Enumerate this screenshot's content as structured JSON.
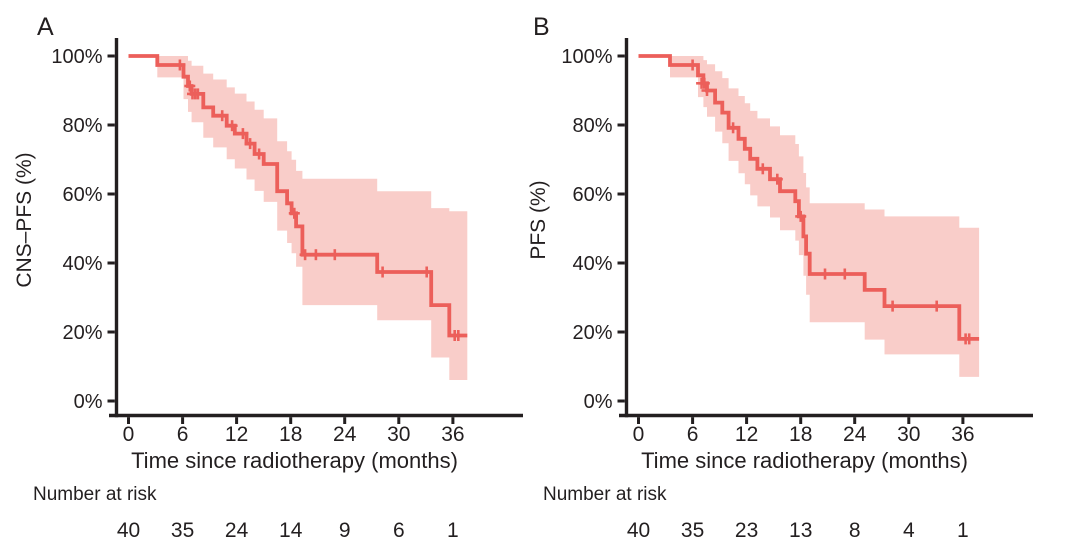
{
  "figure": {
    "background": "#ffffff",
    "text_color": "#231f20",
    "line_color": "#ec5f5a",
    "band_color": "#f9cdc9",
    "risk_header": "Number at risk",
    "xlabel": "Time since radiotherapy (months)",
    "y_tick_labels": [
      "100%",
      "80%",
      "60%",
      "40%",
      "20%",
      "0%"
    ],
    "y_tick_values": [
      100,
      80,
      60,
      40,
      20,
      0
    ],
    "x_tick_values": [
      0,
      6,
      12,
      18,
      24,
      30,
      36
    ]
  },
  "chart_data": [
    {
      "type": "line",
      "subtype": "kaplan-meier-step-with-ci-band",
      "panel_label": "A",
      "ylabel": "CNS–PFS (%)",
      "xlabel": "Time since radiotherapy (months)",
      "xlim": [
        0,
        42
      ],
      "ylim": [
        0,
        100
      ],
      "x_ticks": [
        0,
        6,
        12,
        18,
        24,
        30,
        36
      ],
      "y_tick_labels": [
        "100%",
        "80%",
        "60%",
        "40%",
        "20%",
        "0%"
      ],
      "y_tick_values": [
        100,
        80,
        60,
        40,
        20,
        0
      ],
      "grid": false,
      "legend": "none",
      "end_t": 37.6,
      "steps": [
        {
          "t": 0.0,
          "s": 100.0,
          "lo": 100.0,
          "hi": 100.0
        },
        {
          "t": 3.2,
          "s": 97.4,
          "lo": 93.8,
          "hi": 100.0
        },
        {
          "t": 6.1,
          "s": 94.0,
          "lo": 87.5,
          "hi": 100.0
        },
        {
          "t": 6.6,
          "s": 91.3,
          "lo": 83.8,
          "hi": 98.6
        },
        {
          "t": 7.0,
          "s": 89.0,
          "lo": 80.8,
          "hi": 97.2
        },
        {
          "t": 8.3,
          "s": 85.1,
          "lo": 76.3,
          "hi": 94.9
        },
        {
          "t": 9.4,
          "s": 82.7,
          "lo": 73.5,
          "hi": 93.2
        },
        {
          "t": 10.9,
          "s": 79.8,
          "lo": 70.1,
          "hi": 90.9
        },
        {
          "t": 11.8,
          "s": 77.5,
          "lo": 67.4,
          "hi": 89.1
        },
        {
          "t": 13.1,
          "s": 74.6,
          "lo": 64.2,
          "hi": 86.8
        },
        {
          "t": 14.0,
          "s": 71.6,
          "lo": 60.9,
          "hi": 84.4
        },
        {
          "t": 15.0,
          "s": 68.7,
          "lo": 57.7,
          "hi": 81.9
        },
        {
          "t": 16.5,
          "s": 60.8,
          "lo": 49.4,
          "hi": 75.3
        },
        {
          "t": 17.6,
          "s": 57.3,
          "lo": 45.8,
          "hi": 72.4
        },
        {
          "t": 18.1,
          "s": 54.4,
          "lo": 42.8,
          "hi": 69.9
        },
        {
          "t": 18.6,
          "s": 50.6,
          "lo": 38.9,
          "hi": 66.7
        },
        {
          "t": 19.3,
          "s": 42.4,
          "lo": 27.8,
          "hi": 64.4
        },
        {
          "t": 27.6,
          "s": 37.4,
          "lo": 23.4,
          "hi": 60.8
        },
        {
          "t": 33.6,
          "s": 27.8,
          "lo": 12.6,
          "hi": 55.9
        },
        {
          "t": 35.6,
          "s": 19.0,
          "lo": 6.1,
          "hi": 55.0
        }
      ],
      "censor_marks": [
        {
          "t": 5.7,
          "s": 97.4
        },
        {
          "t": 6.8,
          "s": 91.3
        },
        {
          "t": 7.1,
          "s": 89.0
        },
        {
          "t": 7.4,
          "s": 89.0
        },
        {
          "t": 7.7,
          "s": 89.0
        },
        {
          "t": 10.4,
          "s": 82.7
        },
        {
          "t": 11.5,
          "s": 79.8
        },
        {
          "t": 12.7,
          "s": 77.5
        },
        {
          "t": 13.5,
          "s": 74.6
        },
        {
          "t": 14.5,
          "s": 71.6
        },
        {
          "t": 18.4,
          "s": 54.4
        },
        {
          "t": 19.6,
          "s": 42.4
        },
        {
          "t": 20.8,
          "s": 42.4
        },
        {
          "t": 22.9,
          "s": 42.4
        },
        {
          "t": 28.2,
          "s": 37.4
        },
        {
          "t": 33.1,
          "s": 37.4
        },
        {
          "t": 36.2,
          "s": 19.0
        },
        {
          "t": 36.6,
          "s": 19.0
        }
      ],
      "number_at_risk": {
        "label": "Number at risk",
        "times": [
          0,
          6,
          12,
          18,
          24,
          30,
          36
        ],
        "counts": [
          40,
          35,
          24,
          14,
          9,
          6,
          1
        ]
      }
    },
    {
      "type": "line",
      "subtype": "kaplan-meier-step-with-ci-band",
      "panel_label": "B",
      "ylabel": "PFS (%)",
      "xlabel": "Time since radiotherapy (months)",
      "xlim": [
        0,
        42
      ],
      "ylim": [
        0,
        100
      ],
      "x_ticks": [
        0,
        6,
        12,
        18,
        24,
        30,
        36
      ],
      "y_tick_labels": [
        "100%",
        "80%",
        "60%",
        "40%",
        "20%",
        "0%"
      ],
      "y_tick_values": [
        100,
        80,
        60,
        40,
        20,
        0
      ],
      "grid": false,
      "legend": "none",
      "end_t": 37.8,
      "steps": [
        {
          "t": 0.0,
          "s": 100.0,
          "lo": 100.0,
          "hi": 100.0
        },
        {
          "t": 3.5,
          "s": 97.4,
          "lo": 93.8,
          "hi": 100.0
        },
        {
          "t": 6.6,
          "s": 94.4,
          "lo": 88.1,
          "hi": 100.0
        },
        {
          "t": 7.2,
          "s": 92.1,
          "lo": 85.2,
          "hi": 98.8
        },
        {
          "t": 7.6,
          "s": 90.0,
          "lo": 82.4,
          "hi": 97.6
        },
        {
          "t": 8.5,
          "s": 86.5,
          "lo": 78.1,
          "hi": 95.6
        },
        {
          "t": 9.3,
          "s": 83.6,
          "lo": 74.7,
          "hi": 93.6
        },
        {
          "t": 10.0,
          "s": 79.2,
          "lo": 69.6,
          "hi": 90.6
        },
        {
          "t": 11.1,
          "s": 76.0,
          "lo": 66.0,
          "hi": 88.4
        },
        {
          "t": 11.8,
          "s": 73.1,
          "lo": 62.8,
          "hi": 86.3
        },
        {
          "t": 12.4,
          "s": 70.2,
          "lo": 59.6,
          "hi": 84.1
        },
        {
          "t": 13.2,
          "s": 67.3,
          "lo": 56.4,
          "hi": 81.9
        },
        {
          "t": 14.6,
          "s": 64.3,
          "lo": 53.2,
          "hi": 79.6
        },
        {
          "t": 15.7,
          "s": 60.8,
          "lo": 49.5,
          "hi": 77.0
        },
        {
          "t": 17.4,
          "s": 57.9,
          "lo": 46.5,
          "hi": 74.5
        },
        {
          "t": 17.8,
          "s": 53.5,
          "lo": 42.3,
          "hi": 70.9
        },
        {
          "t": 18.3,
          "s": 47.7,
          "lo": 36.3,
          "hi": 66.1
        },
        {
          "t": 18.6,
          "s": 42.7,
          "lo": 30.8,
          "hi": 61.9
        },
        {
          "t": 19.0,
          "s": 36.8,
          "lo": 22.8,
          "hi": 57.3
        },
        {
          "t": 25.1,
          "s": 32.2,
          "lo": 17.8,
          "hi": 55.5
        },
        {
          "t": 27.3,
          "s": 27.5,
          "lo": 13.5,
          "hi": 53.5
        },
        {
          "t": 35.6,
          "s": 18.0,
          "lo": 7.0,
          "hi": 50.2
        }
      ],
      "censor_marks": [
        {
          "t": 6.0,
          "s": 97.4
        },
        {
          "t": 7.0,
          "s": 92.1
        },
        {
          "t": 7.3,
          "s": 92.1
        },
        {
          "t": 7.6,
          "s": 90.0
        },
        {
          "t": 10.5,
          "s": 79.2
        },
        {
          "t": 13.8,
          "s": 67.3
        },
        {
          "t": 15.4,
          "s": 64.3
        },
        {
          "t": 18.0,
          "s": 53.5
        },
        {
          "t": 20.7,
          "s": 36.8
        },
        {
          "t": 22.9,
          "s": 36.8
        },
        {
          "t": 28.2,
          "s": 27.5
        },
        {
          "t": 33.1,
          "s": 27.5
        },
        {
          "t": 36.3,
          "s": 18.0
        },
        {
          "t": 36.7,
          "s": 18.0
        }
      ],
      "number_at_risk": {
        "label": "Number at risk",
        "times": [
          0,
          6,
          12,
          18,
          24,
          30,
          36
        ],
        "counts": [
          40,
          35,
          23,
          13,
          8,
          4,
          1
        ]
      }
    }
  ]
}
